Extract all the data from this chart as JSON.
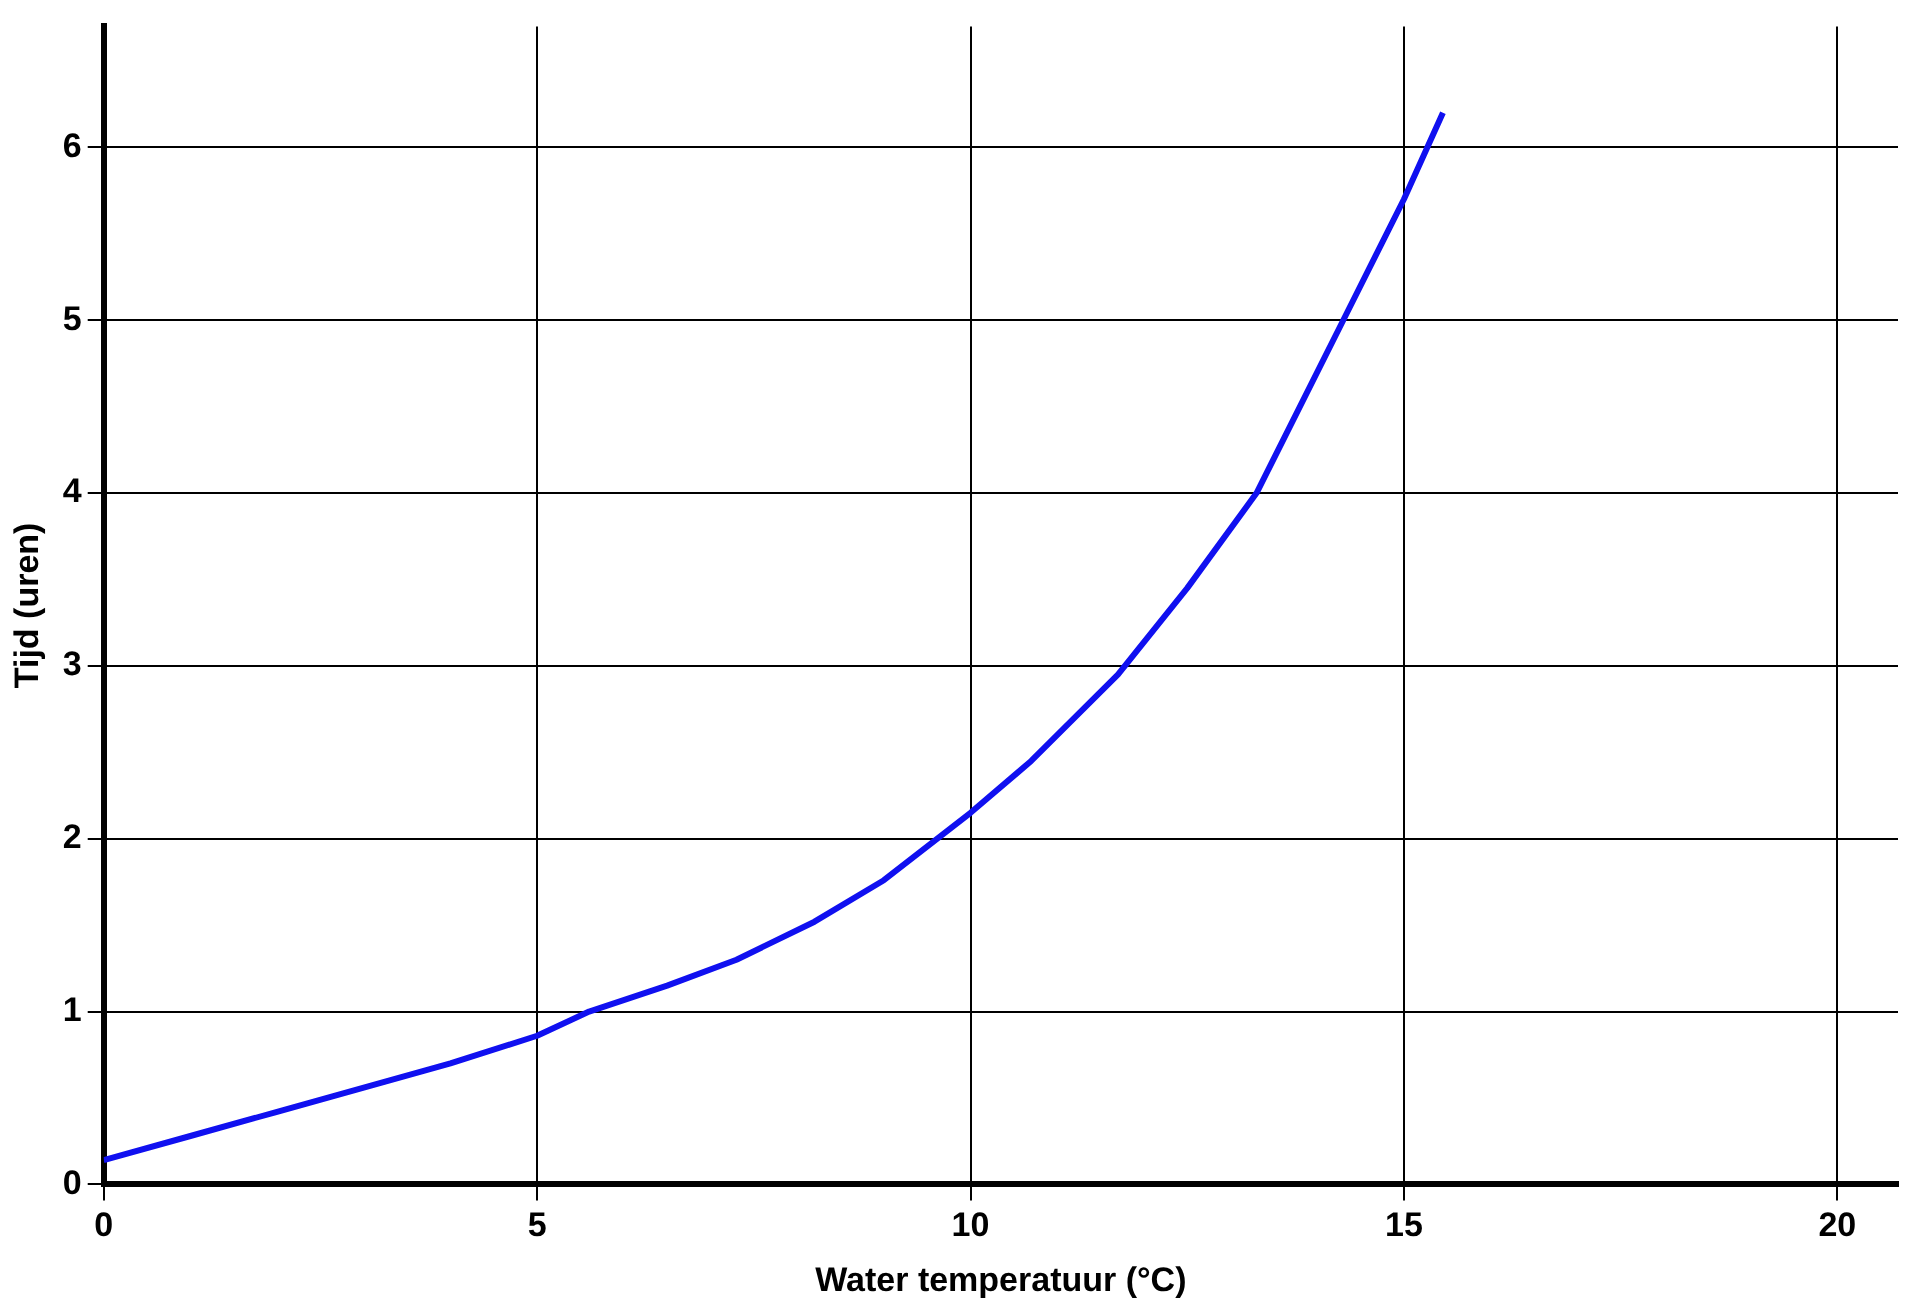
{
  "chart_data": {
    "type": "line",
    "xlabel": "Water temperatuur (°C)",
    "ylabel": "Tijd (uren)",
    "x": [
      0,
      1,
      2,
      3,
      4,
      5,
      5.6,
      6.5,
      7.3,
      8.2,
      9,
      10,
      10.7,
      11.7,
      12.5,
      13.3,
      14.3,
      15,
      15.45
    ],
    "series": [
      {
        "color": "#1010f0",
        "values": [
          0.14,
          0.28,
          0.42,
          0.56,
          0.7,
          0.86,
          1.0,
          1.15,
          1.3,
          1.52,
          1.76,
          2.15,
          2.45,
          2.95,
          3.45,
          4.0,
          5.0,
          5.7,
          6.2
        ]
      }
    ],
    "xlim": [
      0,
      20.7
    ],
    "ylim": [
      0,
      6.7
    ],
    "xticks": [
      0,
      5,
      10,
      15,
      20
    ],
    "yticks": [
      0,
      1,
      2,
      3,
      4,
      5,
      6
    ],
    "grid": true,
    "legend": false,
    "marker": "none",
    "line_style": "solid"
  }
}
